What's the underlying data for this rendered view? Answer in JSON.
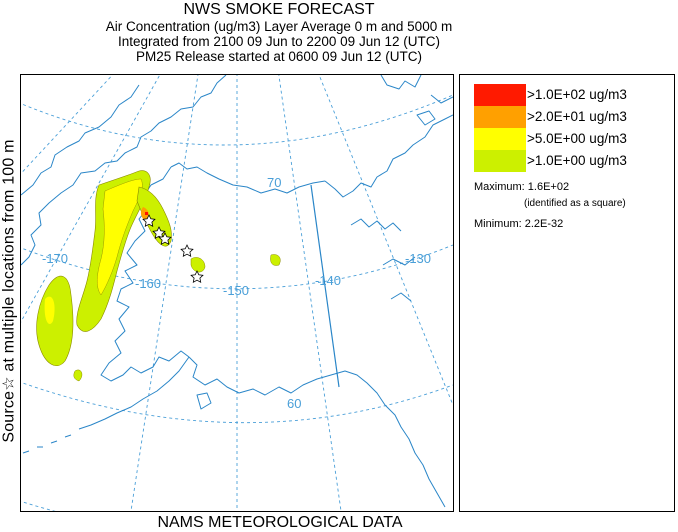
{
  "header": {
    "title": "NWS SMOKE FORECAST",
    "line2": "Air Concentration (ug/m3) Layer Average    0 m and  5000 m",
    "line3": "Integrated from 2100 09 Jun to 2200 09 Jun 12 (UTC)",
    "line4": "PM25 Release started at 0600 09 Jun 12 (UTC)"
  },
  "side_label": "Source☆ at multiple locations  from   100 m",
  "footer": "NAMS METEOROLOGICAL DATA",
  "map": {
    "longitude_labels": [
      "-170",
      "-160",
      "-150",
      "-140",
      "-130"
    ],
    "latitude_labels": [
      "70",
      "60"
    ],
    "colors": {
      "graticule": "#4a9fd8",
      "coast": "#2a86c8",
      "smoke_low": "#ccf000",
      "smoke_mid": "#ffff00",
      "smoke_high": "#ffa000",
      "smoke_max": "#ff1000"
    }
  },
  "legend": {
    "levels": [
      {
        "label": ">1.0E+02 ug/m3",
        "color": "#ff1a00"
      },
      {
        "label": ">2.0E+01 ug/m3",
        "color": "#ffa000"
      },
      {
        "label": ">5.0E+00 ug/m3",
        "color": "#ffff00"
      },
      {
        "label": ">1.0E+00 ug/m3",
        "color": "#ccf000"
      }
    ],
    "maximum": "Maximum: 1.6E+02",
    "maximum_note": "(identified as a square)",
    "minimum": "Minimum: 2.2E-32"
  }
}
